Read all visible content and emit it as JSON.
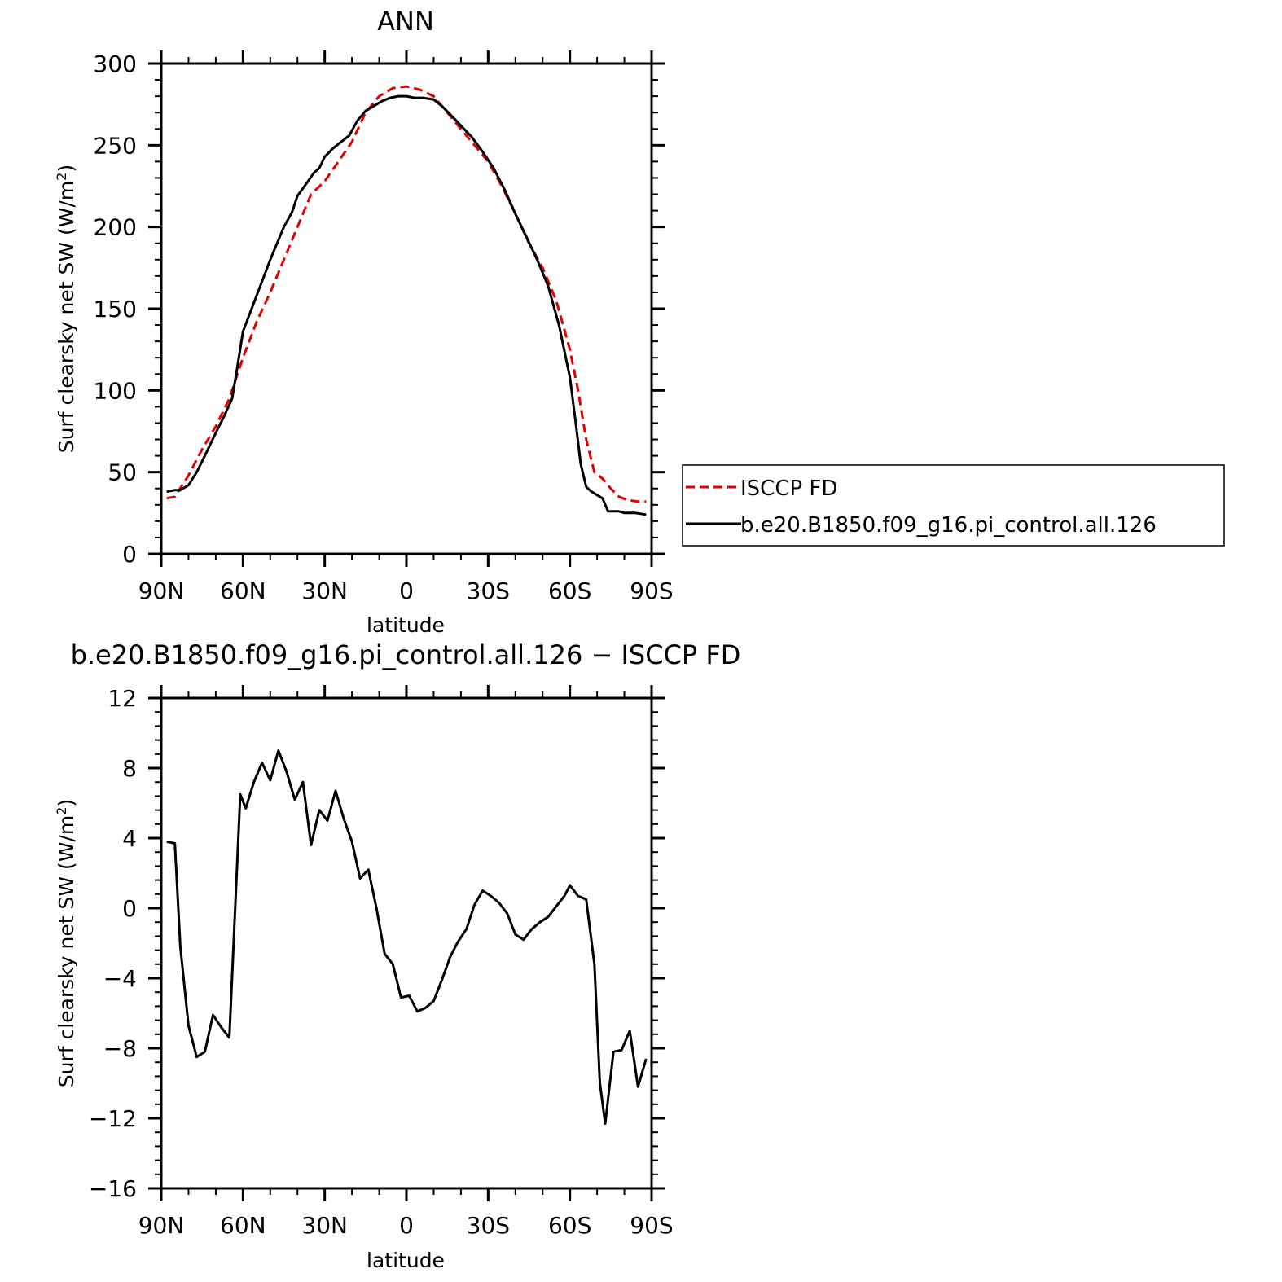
{
  "chart_data": [
    {
      "type": "line",
      "title": "ANN",
      "xlabel": "latitude",
      "ylabel": "Surf clearsky net SW (W/m²)",
      "ylabel_main": "Surf clearsky net SW (W/m",
      "ylabel_sup": "2",
      "ylabel_close": ")",
      "xlim": [
        90,
        -90
      ],
      "ylim": [
        0,
        300
      ],
      "x_ticks": [
        90,
        60,
        30,
        0,
        -30,
        -60,
        -90
      ],
      "x_tick_labels": [
        "90N",
        "60N",
        "30N",
        "0",
        "30S",
        "60S",
        "90S"
      ],
      "y_ticks": [
        0,
        50,
        100,
        150,
        200,
        250,
        300
      ],
      "y_tick_labels": [
        "0",
        "50",
        "100",
        "150",
        "200",
        "250",
        "300"
      ],
      "legend": {
        "placement": "right",
        "entries": [
          "ISCCP FD",
          "b.e20.B1850.f09_g16.pi_control.all.126"
        ]
      },
      "series": [
        {
          "name": "ISCCP FD",
          "color": "#e00000",
          "dash": "dashed",
          "x": [
            88,
            85,
            80,
            75,
            70,
            65,
            60,
            55,
            50,
            45,
            40,
            35,
            30,
            25,
            20,
            15,
            10,
            5,
            0,
            -5,
            -10,
            -15,
            -20,
            -25,
            -30,
            -35,
            -40,
            -45,
            -50,
            -55,
            -60,
            -63,
            -66,
            -69,
            -72,
            -75,
            -78,
            -81,
            -85,
            -88
          ],
          "values": [
            34,
            35,
            48,
            64,
            78,
            95,
            120,
            142,
            160,
            180,
            200,
            220,
            228,
            240,
            252,
            270,
            280,
            285,
            286,
            284,
            280,
            270,
            260,
            250,
            240,
            225,
            208,
            190,
            175,
            155,
            125,
            100,
            70,
            50,
            46,
            40,
            35,
            33,
            32,
            32
          ]
        },
        {
          "name": "b.e20.B1850.f09_g16.pi_control.all.126",
          "color": "#000000",
          "dash": "solid",
          "x": [
            88,
            85,
            83,
            80,
            77,
            74,
            70,
            67,
            64,
            62,
            60,
            55,
            50,
            45,
            42,
            40,
            37,
            34,
            32,
            30,
            27,
            24,
            21,
            18,
            15,
            12,
            9,
            6,
            3,
            0,
            -3,
            -6,
            -10,
            -13,
            -16,
            -20,
            -24,
            -28,
            -32,
            -36,
            -40,
            -44,
            -48,
            -52,
            -56,
            -60,
            -62,
            -64,
            -66,
            -68,
            -70,
            -72,
            -74,
            -76,
            -78,
            -80,
            -84,
            -88
          ],
          "values": [
            38,
            39,
            39,
            42,
            50,
            60,
            74,
            84,
            95,
            115,
            136,
            158,
            180,
            200,
            209,
            219,
            226,
            233,
            236,
            243,
            248,
            252,
            256,
            265,
            271,
            274,
            277,
            279,
            280,
            280,
            279,
            279,
            278,
            274,
            269,
            262,
            255,
            246,
            236,
            223,
            208,
            194,
            180,
            164,
            140,
            108,
            82,
            55,
            41,
            38,
            36,
            34,
            26,
            26,
            26,
            25,
            25,
            24
          ]
        }
      ]
    },
    {
      "type": "line",
      "title": "b.e20.B1850.f09_g16.pi_control.all.126 − ISCCP FD",
      "xlabel": "latitude",
      "ylabel": "Surf clearsky net SW (W/m²)",
      "ylabel_main": "Surf clearsky net SW (W/m",
      "ylabel_sup": "2",
      "ylabel_close": ")",
      "xlim": [
        90,
        -90
      ],
      "ylim": [
        -16,
        12
      ],
      "x_ticks": [
        90,
        60,
        30,
        0,
        -30,
        -60,
        -90
      ],
      "x_tick_labels": [
        "90N",
        "60N",
        "30N",
        "0",
        "30S",
        "60S",
        "90S"
      ],
      "y_ticks": [
        -16,
        -12,
        -8,
        -4,
        0,
        4,
        8,
        12
      ],
      "y_tick_labels": [
        "−16",
        "−12",
        "−8",
        "−4",
        "0",
        "4",
        "8",
        "12"
      ],
      "series": [
        {
          "color": "#000000",
          "dash": "solid",
          "x": [
            88,
            85,
            83,
            80,
            77,
            74,
            71,
            68,
            65,
            61,
            59,
            56,
            53,
            50,
            47,
            44,
            41,
            38,
            35,
            32,
            29,
            26,
            23,
            20,
            17,
            14,
            11,
            8,
            5,
            2,
            -1,
            -4,
            -7,
            -10,
            -13,
            -16,
            -19,
            -22,
            -25,
            -28,
            -31,
            -34,
            -37,
            -40,
            -43,
            -46,
            -49,
            -52,
            -55,
            -58,
            -60,
            -63,
            -66,
            -69,
            -71,
            -73,
            -76,
            -79,
            -82,
            -85,
            -88
          ],
          "values": [
            3.8,
            3.7,
            -2.2,
            -6.7,
            -8.5,
            -8.2,
            -6.1,
            -6.8,
            -7.4,
            6.5,
            5.7,
            7.2,
            8.3,
            7.3,
            9.0,
            7.8,
            6.2,
            7.2,
            3.6,
            5.6,
            5.0,
            6.7,
            5.1,
            3.8,
            1.7,
            2.2,
            0.0,
            -2.6,
            -3.2,
            -5.1,
            -5.0,
            -5.9,
            -5.7,
            -5.3,
            -4.1,
            -2.8,
            -1.9,
            -1.2,
            0.2,
            1.0,
            0.7,
            0.3,
            -0.3,
            -1.5,
            -1.8,
            -1.2,
            -0.8,
            -0.5,
            0.1,
            0.7,
            1.3,
            0.7,
            0.5,
            -3.2,
            -10.0,
            -12.3,
            -8.2,
            -8.1,
            -7.0,
            -10.2,
            -8.6
          ]
        }
      ]
    }
  ]
}
